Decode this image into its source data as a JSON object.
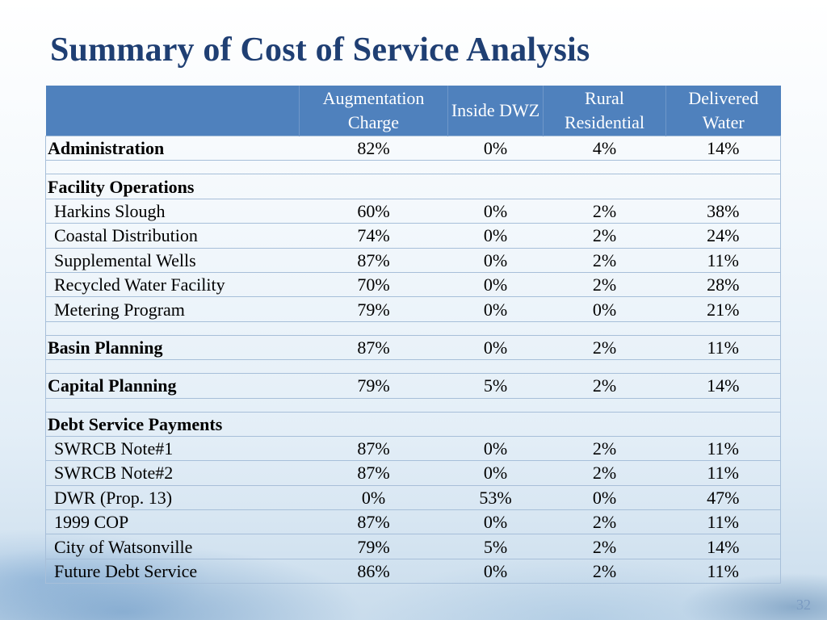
{
  "title": "Summary of Cost of Service Analysis",
  "slide_number": "32",
  "table": {
    "headers": [
      "",
      "Augmentation Charge",
      "Inside DWZ",
      "Rural Residential",
      "Delivered Water"
    ],
    "rows": [
      {
        "label": "Administration",
        "bold": true,
        "indent": false,
        "values": [
          "82%",
          "0%",
          "4%",
          "14%"
        ]
      },
      {
        "spacer": true
      },
      {
        "label": "Facility Operations",
        "bold": true,
        "indent": false,
        "values": [
          "",
          "",
          "",
          ""
        ]
      },
      {
        "label": "Harkins Slough",
        "bold": false,
        "indent": true,
        "values": [
          "60%",
          "0%",
          "2%",
          "38%"
        ]
      },
      {
        "label": "Coastal Distribution",
        "bold": false,
        "indent": true,
        "values": [
          "74%",
          "0%",
          "2%",
          "24%"
        ]
      },
      {
        "label": "Supplemental Wells",
        "bold": false,
        "indent": true,
        "values": [
          "87%",
          "0%",
          "2%",
          "11%"
        ]
      },
      {
        "label": "Recycled Water Facility",
        "bold": false,
        "indent": true,
        "values": [
          "70%",
          "0%",
          "2%",
          "28%"
        ]
      },
      {
        "label": "Metering Program",
        "bold": false,
        "indent": true,
        "values": [
          "79%",
          "0%",
          "0%",
          "21%"
        ]
      },
      {
        "spacer": true
      },
      {
        "label": "Basin Planning",
        "bold": true,
        "indent": false,
        "values": [
          "87%",
          "0%",
          "2%",
          "11%"
        ]
      },
      {
        "spacer": true
      },
      {
        "label": "Capital Planning",
        "bold": true,
        "indent": false,
        "values": [
          "79%",
          "5%",
          "2%",
          "14%"
        ]
      },
      {
        "spacer": true
      },
      {
        "label": "Debt Service Payments",
        "bold": true,
        "indent": false,
        "values": [
          "",
          "",
          "",
          ""
        ]
      },
      {
        "label": "SWRCB Note#1",
        "bold": false,
        "indent": true,
        "values": [
          "87%",
          "0%",
          "2%",
          "11%"
        ]
      },
      {
        "label": "SWRCB Note#2",
        "bold": false,
        "indent": true,
        "values": [
          "87%",
          "0%",
          "2%",
          "11%"
        ]
      },
      {
        "label": "DWR (Prop. 13)",
        "bold": false,
        "indent": true,
        "values": [
          "0%",
          "53%",
          "0%",
          "47%"
        ]
      },
      {
        "label": "1999 COP",
        "bold": false,
        "indent": true,
        "values": [
          "87%",
          "0%",
          "2%",
          "11%"
        ]
      },
      {
        "label": "City of Watsonville",
        "bold": false,
        "indent": true,
        "values": [
          "79%",
          "5%",
          "2%",
          "14%"
        ]
      },
      {
        "label": "Future Debt Service",
        "bold": false,
        "indent": true,
        "values": [
          "86%",
          "0%",
          "2%",
          "11%"
        ]
      }
    ]
  },
  "colors": {
    "title": "#1f3f73",
    "header_bg": "#4f81bd",
    "header_text": "#ffffff"
  }
}
